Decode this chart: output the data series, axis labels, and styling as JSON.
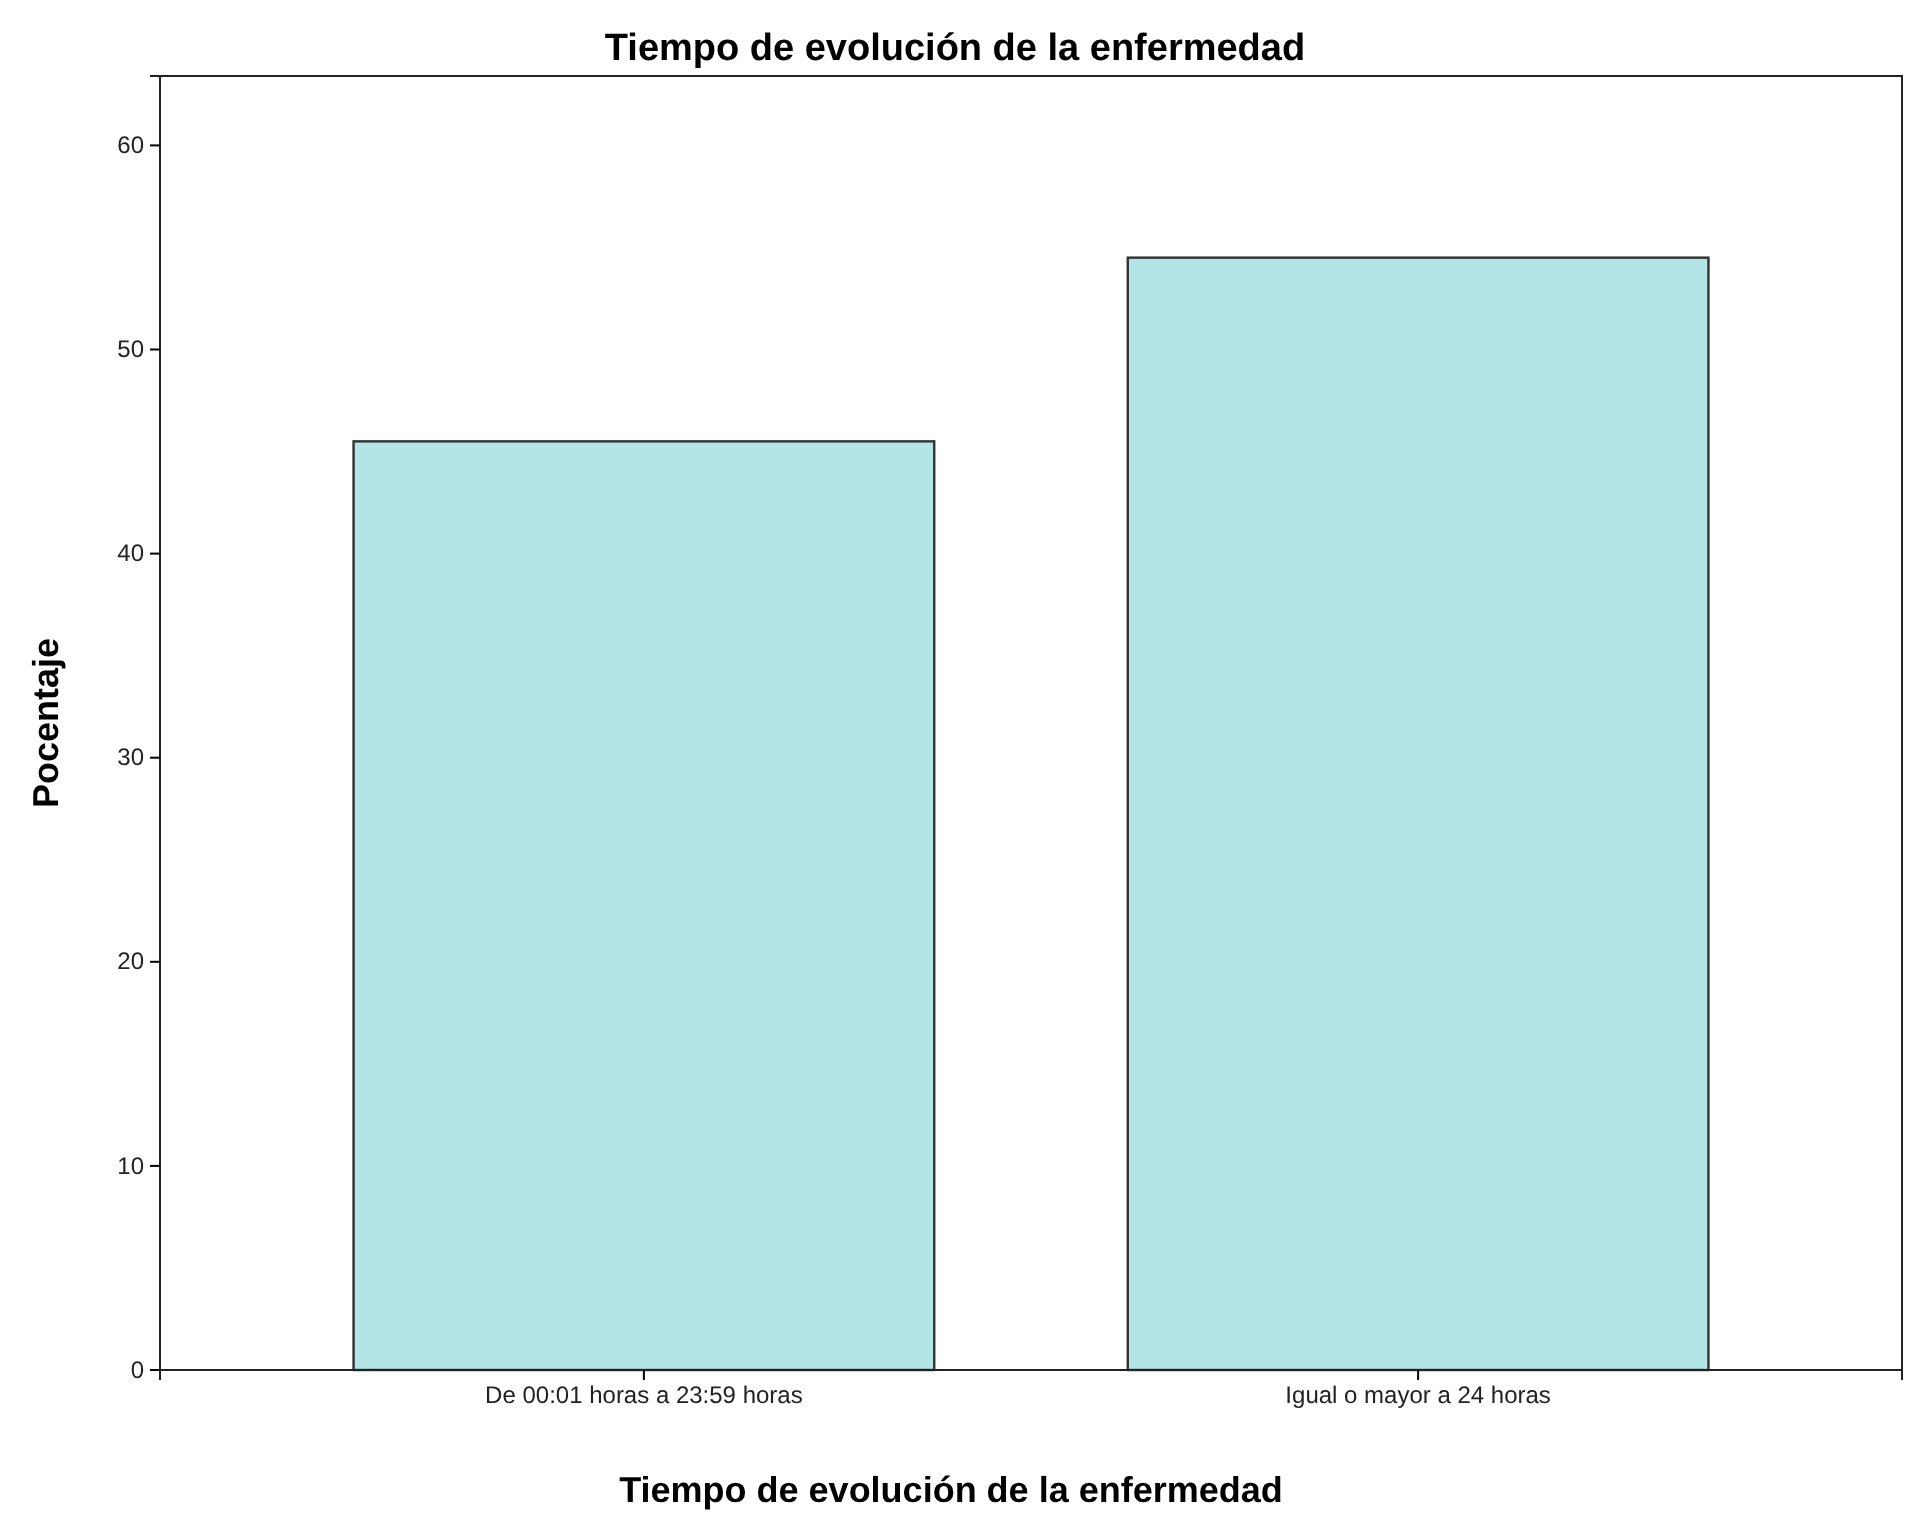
{
  "chart_data": {
    "type": "bar",
    "title": "Tiempo de evolución de la enfermedad",
    "xlabel": "Tiempo de evolución de la enfermedad",
    "ylabel": "Pocentaje",
    "categories": [
      "De 00:01 horas a 23:59 horas",
      "Igual o mayor a 24 horas"
    ],
    "values": [
      45.5,
      54.5
    ],
    "color": "#b3e5e6",
    "ylim": [
      0,
      63.4
    ],
    "yticks": [
      0,
      10,
      20,
      30,
      40,
      50,
      60
    ],
    "grid": false
  }
}
